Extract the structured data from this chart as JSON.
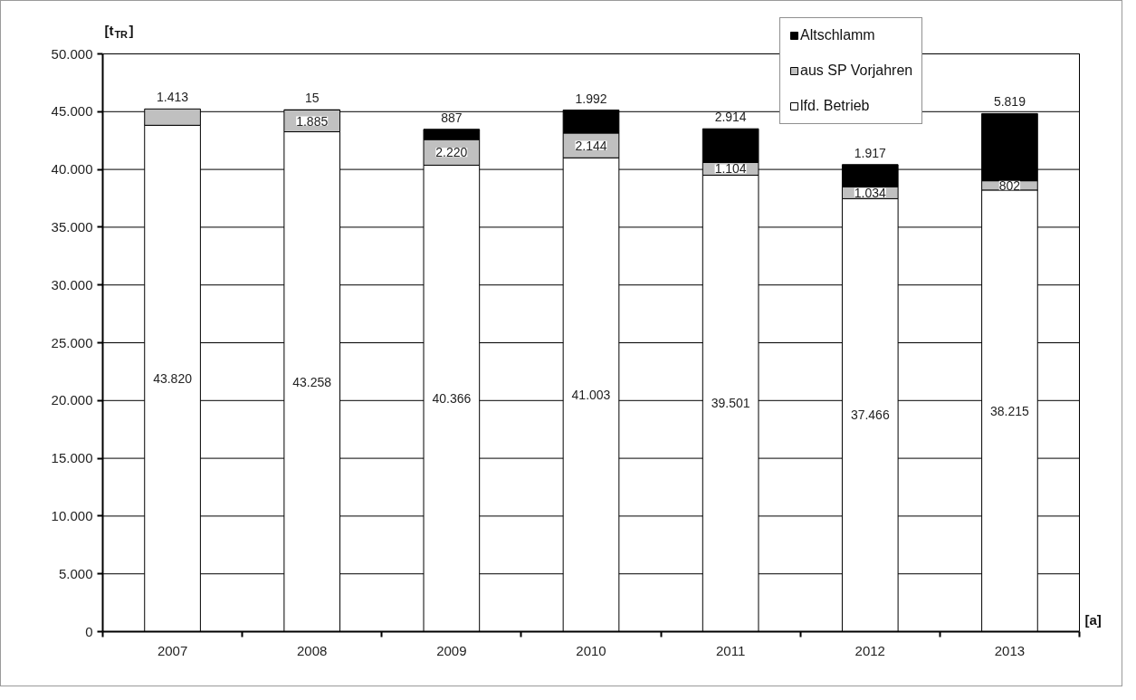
{
  "chart_data": {
    "type": "bar",
    "stacked": true,
    "ylabel": "[t$_{TR}$]",
    "xlabel": "[a]",
    "categories": [
      "2007",
      "2008",
      "2009",
      "2010",
      "2011",
      "2012",
      "2013"
    ],
    "series": [
      {
        "name": "lfd. Betrieb",
        "color": "#ffffff",
        "values": [
          43820,
          43258,
          40366,
          41003,
          39501,
          37466,
          38215
        ],
        "value_labels": [
          "43.820",
          "43.258",
          "40.366",
          "41.003",
          "39.501",
          "37.466",
          "38.215"
        ]
      },
      {
        "name": "aus SP Vorjahren",
        "color": "#c0c0c0",
        "values": [
          1413,
          1885,
          2220,
          2144,
          1104,
          1034,
          802
        ],
        "value_labels": [
          "1.413",
          "1.885",
          "2.220",
          "2.144",
          "1.104",
          "1.034",
          "802"
        ]
      },
      {
        "name": "Altschlamm",
        "color": "#000000",
        "values": [
          null,
          15,
          887,
          1992,
          2914,
          1917,
          5819
        ],
        "value_labels": [
          null,
          "15",
          "887",
          "1.992",
          "2.914",
          "1.917",
          "5.819"
        ]
      }
    ],
    "ylim": [
      0,
      50000
    ],
    "yticks": [
      {
        "value": 0,
        "label": "0"
      },
      {
        "value": 5000,
        "label": "5.000"
      },
      {
        "value": 10000,
        "label": "10.000"
      },
      {
        "value": 15000,
        "label": "15.000"
      },
      {
        "value": 20000,
        "label": "20.000"
      },
      {
        "value": 25000,
        "label": "25.000"
      },
      {
        "value": 30000,
        "label": "30.000"
      },
      {
        "value": 35000,
        "label": "35.000"
      },
      {
        "value": 40000,
        "label": "40.000"
      },
      {
        "value": 45000,
        "label": "45.000"
      },
      {
        "value": 50000,
        "label": "50.000"
      }
    ],
    "grid": "y",
    "legend": "top right"
  }
}
